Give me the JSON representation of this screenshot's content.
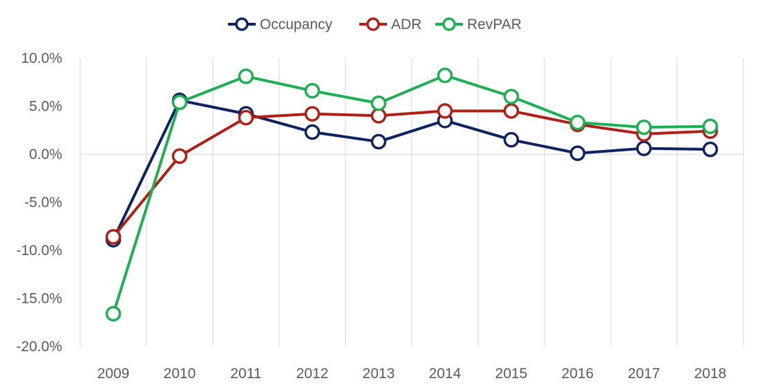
{
  "chart_data": {
    "type": "line",
    "categories": [
      "2009",
      "2010",
      "2011",
      "2012",
      "2013",
      "2014",
      "2015",
      "2016",
      "2017",
      "2018"
    ],
    "series": [
      {
        "name": "Occupancy",
        "color": "#0d2361",
        "values": [
          -8.9,
          5.6,
          4.2,
          2.3,
          1.3,
          3.5,
          1.5,
          0.1,
          0.6,
          0.5
        ]
      },
      {
        "name": "ADR",
        "color": "#b01e15",
        "values": [
          -8.6,
          -0.2,
          3.8,
          4.2,
          4.0,
          4.5,
          4.5,
          3.1,
          2.1,
          2.4
        ]
      },
      {
        "name": "RevPAR",
        "color": "#1db052",
        "values": [
          -16.6,
          5.4,
          8.1,
          6.6,
          5.3,
          8.2,
          6.0,
          3.3,
          2.8,
          2.9
        ]
      }
    ],
    "y_ticks": [
      "10.0%",
      "5.0%",
      "0.0%",
      "-5.0%",
      "-10.0%",
      "-15.0%",
      "-20.0%"
    ],
    "ylim": [
      -20,
      10
    ],
    "ytick_step": 5,
    "title": "",
    "xlabel": "",
    "ylabel": "",
    "legend_position": "top",
    "grid": "vertical category gridlines",
    "gridline_color": "#d9d9d9",
    "marker": "hollow circle"
  }
}
